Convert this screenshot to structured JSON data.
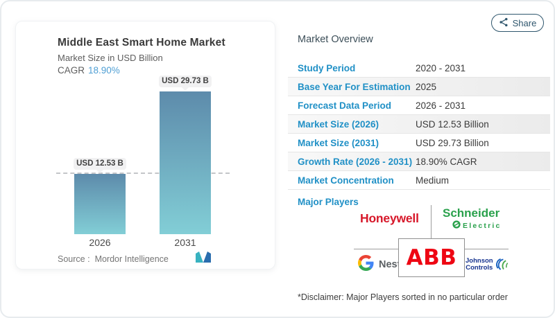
{
  "card": {
    "title": "Middle East Smart Home Market",
    "subtitle": "Market Size in USD Billion",
    "cagr_label": "CAGR",
    "cagr_value": "18.90%",
    "source_label": "Source :",
    "source_name": "Mordor Intelligence"
  },
  "chart_data": {
    "type": "bar",
    "title": "Middle East Smart Home Market",
    "subtitle": "Market Size in USD Billion",
    "cagr": "18.90%",
    "categories": [
      "2026",
      "2031"
    ],
    "values": [
      12.53,
      29.73
    ],
    "unit": "USD Billion",
    "bar_labels": [
      "USD 12.53 B",
      "USD 29.73 B"
    ],
    "ylim": [
      0,
      30
    ],
    "grid": false,
    "reference_line": 12.53,
    "bar_gradient_top": "#5d8bab",
    "bar_gradient_bottom": "#82ced6"
  },
  "overview": {
    "heading": "Market Overview",
    "share_label": "Share",
    "rows": [
      {
        "label": "Study Period",
        "value": "2020 - 2031"
      },
      {
        "label": "Base Year For Estimation",
        "value": "2025"
      },
      {
        "label": "Forecast Data Period",
        "value": "2026 - 2031"
      },
      {
        "label": "Market Size (2026)",
        "value": "USD 12.53 Billion"
      },
      {
        "label": "Market Size (2031)",
        "value": "USD 29.73 Billion"
      },
      {
        "label": "Growth Rate (2026 - 2031)",
        "value": "18.90% CAGR"
      },
      {
        "label": "Market Concentration",
        "value": "Medium"
      }
    ],
    "major_players_label": "Major Players",
    "players": {
      "honeywell": "Honeywell",
      "schneider_line1": "Schneider",
      "schneider_line2": "Electric",
      "nest": "Nest",
      "abb": "ABB",
      "jc_line1": "Johnson",
      "jc_line2": "Controls"
    },
    "disclaimer": "*Disclaimer: Major Players sorted in no particular order"
  },
  "colors": {
    "label_blue": "#2090c6",
    "cagr_blue": "#4f9fd4",
    "honeywell_red": "#d7182a",
    "schneider_green": "#2aa14c",
    "abb_red": "#ee0613",
    "johnson_blue": "#16338f",
    "share_border": "#2f566d"
  }
}
